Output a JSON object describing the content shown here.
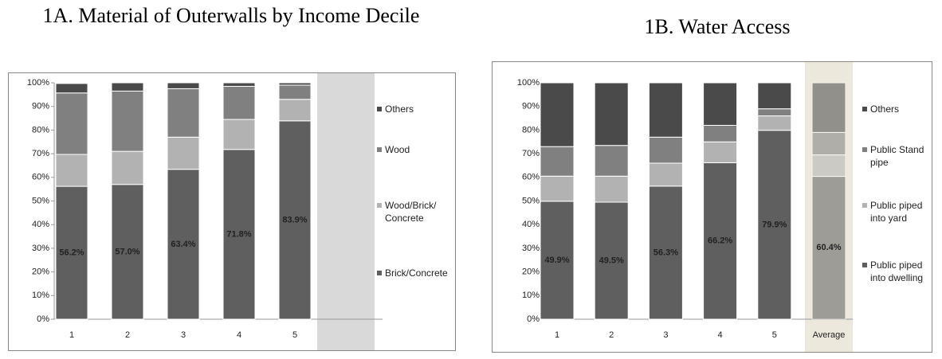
{
  "chart_data": [
    {
      "type": "stacked_bar",
      "title": "1A. Material of Outerwalls by Income Decile",
      "categories": [
        "1",
        "2",
        "3",
        "4",
        "5"
      ],
      "series": [
        {
          "name": "Brick/Concrete",
          "color": "#5f5f5f",
          "values": [
            56.2,
            57.0,
            63.4,
            71.8,
            83.9
          ],
          "value_labels": [
            "56.2%",
            "57.0%",
            "63.4%",
            "71.8%",
            "83.9%"
          ]
        },
        {
          "name": "Wood/Brick/ Concrete",
          "color": "#b2b2b2",
          "values": [
            13.5,
            14,
            13.6,
            12.7,
            9.1
          ]
        },
        {
          "name": "Wood",
          "color": "#808080",
          "values": [
            26,
            25.5,
            20.5,
            14,
            6
          ]
        },
        {
          "name": "Others",
          "color": "#4a4a4a",
          "values": [
            4,
            3.5,
            2.5,
            1.5,
            1
          ]
        }
      ],
      "ylim": [
        0,
        100
      ],
      "yticks": [
        {
          "value": 0,
          "label": "0%"
        },
        {
          "value": 10,
          "label": "10%"
        },
        {
          "value": 20,
          "label": "20%"
        },
        {
          "value": 30,
          "label": "30%"
        },
        {
          "value": 40,
          "label": "40%"
        },
        {
          "value": 50,
          "label": "50%"
        },
        {
          "value": 60,
          "label": "60%"
        },
        {
          "value": 70,
          "label": "70%"
        },
        {
          "value": 80,
          "label": "80%"
        },
        {
          "value": 90,
          "label": "90%"
        },
        {
          "value": 100,
          "label": "100%"
        }
      ],
      "grid": false
    },
    {
      "type": "stacked_bar",
      "title": "1B. Water Access",
      "categories": [
        "1",
        "2",
        "3",
        "4",
        "5",
        "Average"
      ],
      "highlight_category": "Average",
      "series": [
        {
          "name": "Public piped into dwelling",
          "color": "#5f5f5f",
          "values": [
            49.9,
            49.5,
            56.3,
            66.2,
            79.9,
            60.4
          ],
          "value_labels": [
            "49.9%",
            "49.5%",
            "56.3%",
            "66.2%",
            "79.9%",
            "60.4%"
          ]
        },
        {
          "name": "Public piped into yard",
          "color": "#b2b2b2",
          "values": [
            10.6,
            11,
            9.7,
            8.8,
            6.1,
            9.1
          ]
        },
        {
          "name": "Public Stand pipe",
          "color": "#808080",
          "values": [
            12.5,
            13,
            11,
            7,
            3,
            9.5
          ]
        },
        {
          "name": "Others",
          "color": "#4a4a4a",
          "values": [
            27,
            26.5,
            23,
            18,
            11,
            21
          ]
        }
      ],
      "ylim": [
        0,
        100
      ],
      "yticks": [
        {
          "value": 0,
          "label": "0%"
        },
        {
          "value": 10,
          "label": "10%"
        },
        {
          "value": 20,
          "label": "20%"
        },
        {
          "value": 30,
          "label": "30%"
        },
        {
          "value": 40,
          "label": "40%"
        },
        {
          "value": 50,
          "label": "50%"
        },
        {
          "value": 60,
          "label": "60%"
        },
        {
          "value": 70,
          "label": "70%"
        },
        {
          "value": 80,
          "label": "80%"
        },
        {
          "value": 90,
          "label": "90%"
        },
        {
          "value": 100,
          "label": "100%"
        }
      ],
      "grid": false
    }
  ]
}
